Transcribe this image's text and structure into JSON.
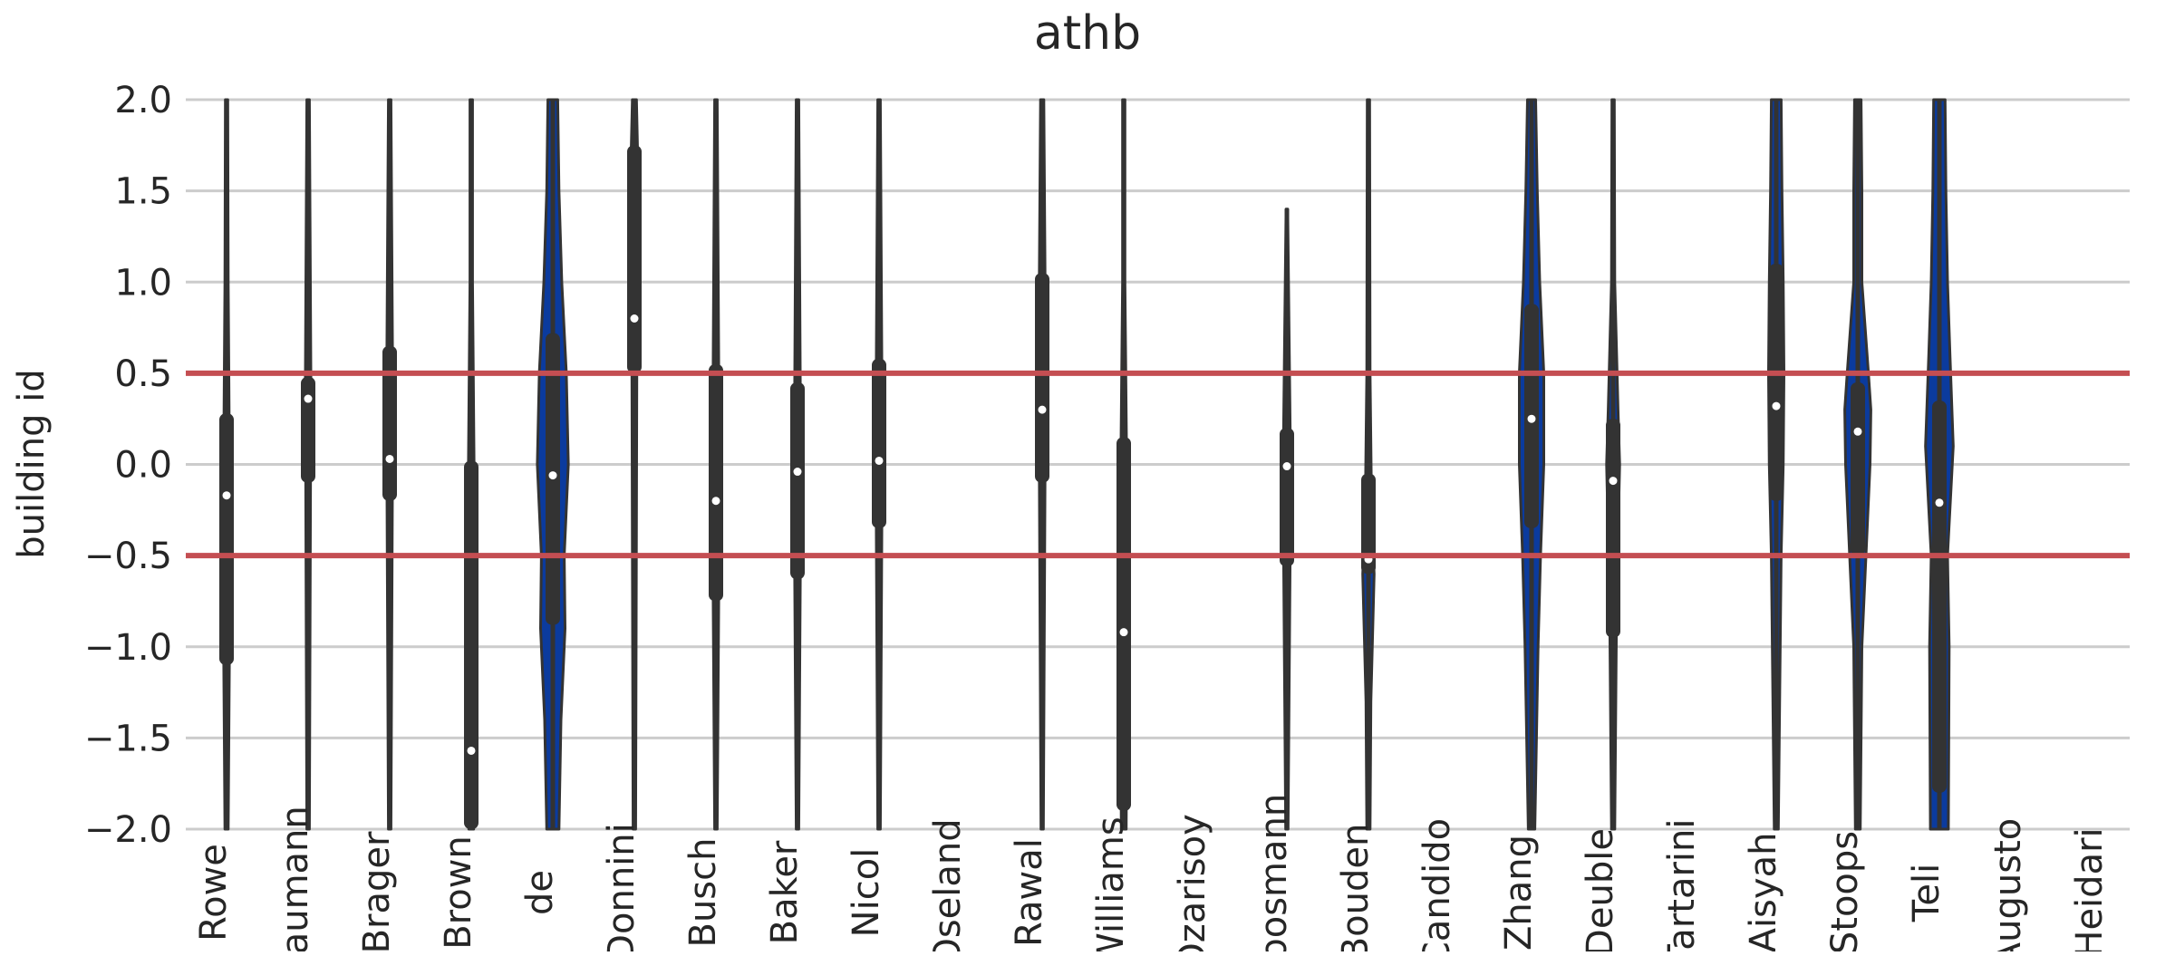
{
  "chart_data": {
    "type": "violin",
    "title": "athb",
    "xlabel": "",
    "ylabel": "building id",
    "ylim": [
      -2.0,
      2.0
    ],
    "yticks": [
      -2.0,
      -1.5,
      -1.0,
      -0.5,
      0.0,
      0.5,
      1.0,
      1.5,
      2.0
    ],
    "ytick_labels": [
      "−2.0",
      "−1.5",
      "−1.0",
      "−0.5",
      "0.0",
      "0.5",
      "1.0",
      "1.5",
      "2.0"
    ],
    "grid": "horizontal",
    "reference_lines": [
      0.5,
      -0.5
    ],
    "colors": {
      "violin_fill": "#0b3b9e",
      "violin_edge": "#333333",
      "box": "#333333",
      "median": "#ffffff",
      "reference_line": "#c44e52",
      "grid": "#cccccc",
      "text": "#262626"
    },
    "categories": [
      "Rowe",
      "Baumann",
      "Brager",
      "Brown",
      "de",
      "Donnini",
      "Busch",
      "Baker",
      "Nicol",
      "Oseland",
      "Rawal",
      "Williams",
      "Ozarisoy",
      "Moosmann",
      "Bouden",
      "Candido",
      "Zhang",
      "Deuble",
      "Tartarini",
      "Aisyah",
      "Stoops",
      "Teli",
      "Augusto",
      "Heidari"
    ],
    "violins": [
      {
        "category": "Rowe",
        "present": true,
        "median": -0.17,
        "q1": -1.1,
        "q3": 0.28,
        "min": -2.0,
        "max": 2.0,
        "width_profile": [
          [
            -2.0,
            0.04
          ],
          [
            -1.0,
            0.07
          ],
          [
            0.0,
            0.07
          ],
          [
            1.0,
            0.04
          ],
          [
            2.0,
            0.03
          ]
        ]
      },
      {
        "category": "Baumann",
        "present": true,
        "median": 0.36,
        "q1": -0.1,
        "q3": 0.48,
        "min": -2.0,
        "max": 2.0,
        "width_profile": [
          [
            -2.0,
            0.03
          ],
          [
            0.0,
            0.06
          ],
          [
            0.4,
            0.07
          ],
          [
            2.0,
            0.03
          ]
        ]
      },
      {
        "category": "Brager",
        "present": true,
        "median": 0.03,
        "q1": -0.2,
        "q3": 0.65,
        "min": -2.0,
        "max": 2.0,
        "width_profile": [
          [
            -2.0,
            0.03
          ],
          [
            0.0,
            0.07
          ],
          [
            0.6,
            0.07
          ],
          [
            2.0,
            0.03
          ]
        ]
      },
      {
        "category": "Brown",
        "present": true,
        "median": -1.57,
        "q1": -2.0,
        "q3": 0.02,
        "min": -2.0,
        "max": 2.0,
        "width_profile": [
          [
            -2.0,
            0.06
          ],
          [
            -1.0,
            0.07
          ],
          [
            0.0,
            0.07
          ],
          [
            1.0,
            0.03
          ],
          [
            2.0,
            0.03
          ]
        ]
      },
      {
        "category": "de",
        "present": true,
        "median": -0.06,
        "q1": -0.88,
        "q3": 0.72,
        "min": -2.0,
        "max": 2.0,
        "width_profile": [
          [
            -2.0,
            0.15
          ],
          [
            -1.4,
            0.2
          ],
          [
            -0.9,
            0.3
          ],
          [
            -0.5,
            0.28
          ],
          [
            0.0,
            0.38
          ],
          [
            0.5,
            0.33
          ],
          [
            1.0,
            0.22
          ],
          [
            1.5,
            0.15
          ],
          [
            2.0,
            0.12
          ]
        ]
      },
      {
        "category": "Donnini",
        "present": true,
        "median": 0.8,
        "q1": 0.5,
        "q3": 1.75,
        "min": -2.0,
        "max": 2.0,
        "width_profile": [
          [
            -2.0,
            0.03
          ],
          [
            0.5,
            0.06
          ],
          [
            1.0,
            0.08
          ],
          [
            1.7,
            0.08
          ],
          [
            2.0,
            0.05
          ]
        ]
      },
      {
        "category": "Busch",
        "present": true,
        "median": -0.2,
        "q1": -0.75,
        "q3": 0.55,
        "min": -2.0,
        "max": 2.0,
        "width_profile": [
          [
            -2.0,
            0.03
          ],
          [
            -0.7,
            0.07
          ],
          [
            0.5,
            0.07
          ],
          [
            2.0,
            0.03
          ]
        ]
      },
      {
        "category": "Baker",
        "present": true,
        "median": -0.04,
        "q1": -0.63,
        "q3": 0.45,
        "min": -2.0,
        "max": 2.0,
        "width_profile": [
          [
            -2.0,
            0.03
          ],
          [
            -0.6,
            0.07
          ],
          [
            0.4,
            0.07
          ],
          [
            2.0,
            0.03
          ]
        ]
      },
      {
        "category": "Nicol",
        "present": true,
        "median": 0.02,
        "q1": -0.35,
        "q3": 0.58,
        "min": -2.0,
        "max": 2.0,
        "width_profile": [
          [
            -2.0,
            0.03
          ],
          [
            -0.3,
            0.07
          ],
          [
            0.5,
            0.07
          ],
          [
            2.0,
            0.03
          ]
        ]
      },
      {
        "category": "Oseland",
        "present": false
      },
      {
        "category": "Rawal",
        "present": true,
        "median": 0.3,
        "q1": -0.1,
        "q3": 1.05,
        "min": -2.0,
        "max": 2.0,
        "width_profile": [
          [
            -2.0,
            0.03
          ],
          [
            0.0,
            0.07
          ],
          [
            1.0,
            0.07
          ],
          [
            2.0,
            0.04
          ]
        ]
      },
      {
        "category": "Williams",
        "present": true,
        "median": -0.92,
        "q1": -1.9,
        "q3": 0.15,
        "min": -2.0,
        "max": 2.0,
        "width_profile": [
          [
            -2.0,
            0.06
          ],
          [
            -1.0,
            0.08
          ],
          [
            0.0,
            0.07
          ],
          [
            1.0,
            0.03
          ],
          [
            2.0,
            0.03
          ]
        ]
      },
      {
        "category": "Ozarisoy",
        "present": false
      },
      {
        "category": "Moosmann",
        "present": true,
        "median": -0.01,
        "q1": -0.56,
        "q3": 0.2,
        "min": -2.0,
        "max": 1.4,
        "width_profile": [
          [
            -2.0,
            0.03
          ],
          [
            -0.5,
            0.08
          ],
          [
            0.0,
            0.1
          ],
          [
            0.2,
            0.08
          ],
          [
            1.4,
            0.02
          ]
        ]
      },
      {
        "category": "Bouden",
        "present": true,
        "median": -0.52,
        "q1": -0.6,
        "q3": -0.05,
        "min": -2.0,
        "max": 2.0,
        "width_profile": [
          [
            -2.0,
            0.04
          ],
          [
            -1.3,
            0.06
          ],
          [
            -0.6,
            0.14
          ],
          [
            -0.3,
            0.08
          ],
          [
            0.5,
            0.04
          ],
          [
            2.0,
            0.03
          ]
        ]
      },
      {
        "category": "Candido",
        "present": false
      },
      {
        "category": "Zhang",
        "present": true,
        "median": 0.25,
        "q1": -0.35,
        "q3": 0.88,
        "min": -2.0,
        "max": 2.0,
        "width_profile": [
          [
            -2.0,
            0.08
          ],
          [
            -1.0,
            0.16
          ],
          [
            -0.5,
            0.22
          ],
          [
            0.0,
            0.3
          ],
          [
            0.5,
            0.3
          ],
          [
            1.0,
            0.2
          ],
          [
            1.5,
            0.14
          ],
          [
            2.0,
            0.1
          ]
        ]
      },
      {
        "category": "Deuble",
        "present": true,
        "median": -0.09,
        "q1": -0.95,
        "q3": 0.25,
        "min": -2.0,
        "max": 2.0,
        "width_profile": [
          [
            -2.0,
            0.04
          ],
          [
            -0.9,
            0.08
          ],
          [
            -0.4,
            0.12
          ],
          [
            0.0,
            0.16
          ],
          [
            0.3,
            0.12
          ],
          [
            1.0,
            0.04
          ],
          [
            2.0,
            0.03
          ]
        ]
      },
      {
        "category": "Tartarini",
        "present": false
      },
      {
        "category": "Aisyah",
        "present": true,
        "median": 0.32,
        "q1": -0.2,
        "q3": 1.1,
        "min": -2.0,
        "max": 2.0,
        "width_profile": [
          [
            -2.0,
            0.05
          ],
          [
            -0.5,
            0.12
          ],
          [
            0.0,
            0.17
          ],
          [
            0.5,
            0.19
          ],
          [
            1.0,
            0.17
          ],
          [
            1.5,
            0.14
          ],
          [
            2.0,
            0.12
          ]
        ]
      },
      {
        "category": "Stoops",
        "present": true,
        "median": 0.18,
        "q1": -0.5,
        "q3": 0.45,
        "min": -2.0,
        "max": 2.0,
        "width_profile": [
          [
            -2.0,
            0.06
          ],
          [
            -1.0,
            0.1
          ],
          [
            -0.6,
            0.18
          ],
          [
            0.0,
            0.3
          ],
          [
            0.3,
            0.32
          ],
          [
            0.5,
            0.26
          ],
          [
            1.0,
            0.1
          ],
          [
            1.5,
            0.1
          ],
          [
            2.0,
            0.08
          ]
        ]
      },
      {
        "category": "Teli",
        "present": true,
        "median": -0.21,
        "q1": -1.8,
        "q3": 0.35,
        "min": -2.0,
        "max": 2.0,
        "width_profile": [
          [
            -2.0,
            0.22
          ],
          [
            -1.0,
            0.24
          ],
          [
            -0.5,
            0.2
          ],
          [
            0.1,
            0.34
          ],
          [
            0.6,
            0.26
          ],
          [
            1.0,
            0.2
          ],
          [
            1.5,
            0.16
          ],
          [
            2.0,
            0.14
          ]
        ]
      },
      {
        "category": "Augusto",
        "present": false
      },
      {
        "category": "Heidari",
        "present": false
      }
    ]
  }
}
